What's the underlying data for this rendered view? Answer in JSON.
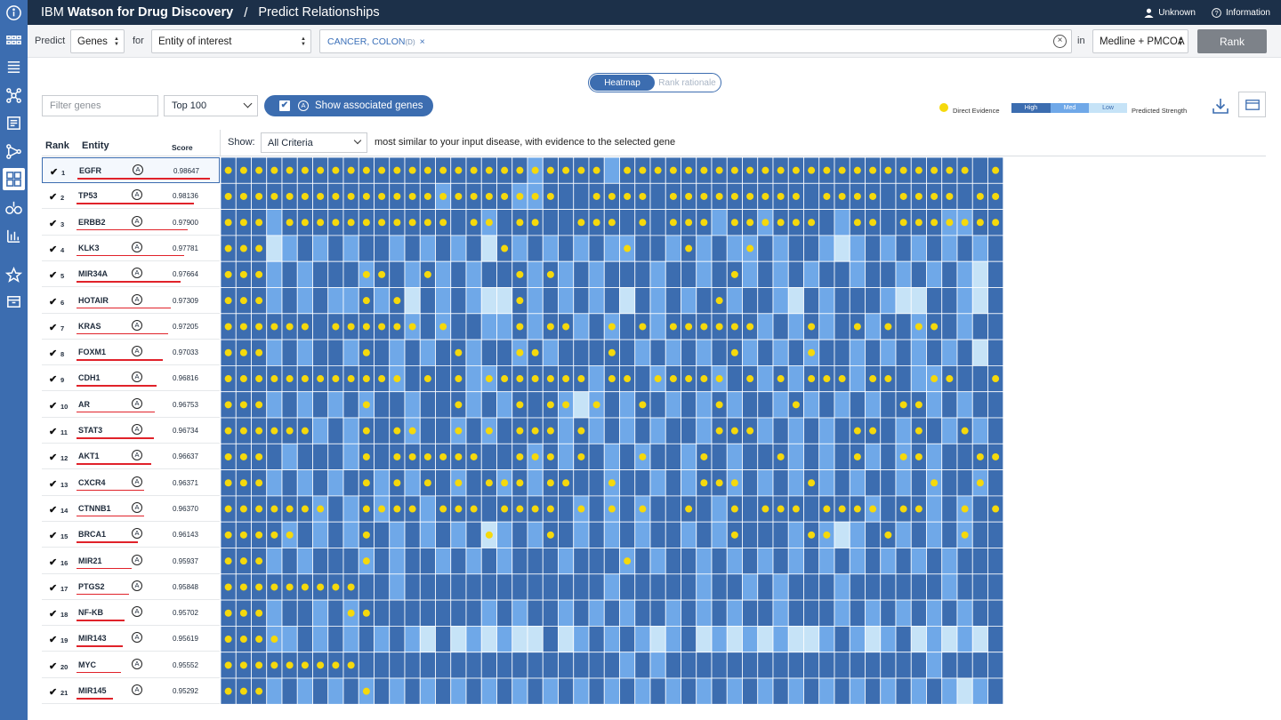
{
  "topbar": {
    "brand_prefix": "IBM",
    "brand_main": "Watson for Drug Discovery",
    "separator": "/",
    "page": "Predict Relationships",
    "user": "Unknown",
    "info": "Information"
  },
  "predict": {
    "label": "Predict",
    "entity_type": "Genes",
    "for_label": "for",
    "for_value": "Entity of interest",
    "disease_chip": "CANCER, COLON",
    "disease_tag": "(D)",
    "chip_remove": "×",
    "in_label": "in",
    "source": "Medline + PMCOA",
    "rank_button": "Rank",
    "clear_glyph": "×"
  },
  "view_toggle": {
    "heatmap": "Heatmap",
    "rationale": "Rank rationale"
  },
  "controls": {
    "filter_placeholder": "Filter genes",
    "top_value": "Top 100",
    "assoc_label": "Show associated genes",
    "assoc_checked": true,
    "a_badge": "A"
  },
  "legend": {
    "direct": "Direct Evidence",
    "high": "High",
    "med": "Med",
    "low": "Low",
    "predicted": "Predicted Strength",
    "dot_color": "#f5d90c",
    "high_color": "#3c6db0",
    "med_color": "#6fa8e8",
    "low_color": "#c6e3f7"
  },
  "table": {
    "rank_header": "Rank",
    "entity_header": "Entity",
    "score_header": "Score",
    "show_label": "Show:",
    "criteria": "All Criteria",
    "criteria_desc": "most similar to your input disease, with evidence to the selected gene",
    "check_glyph": "✔"
  },
  "rows": [
    {
      "rank": "1",
      "entity": "EGFR",
      "score": "0.98647",
      "selected": true
    },
    {
      "rank": "2",
      "entity": "TP53",
      "score": "0.98136"
    },
    {
      "rank": "3",
      "entity": "ERBB2",
      "score": "0.97900"
    },
    {
      "rank": "4",
      "entity": "KLK3",
      "score": "0.97781"
    },
    {
      "rank": "5",
      "entity": "MIR34A",
      "score": "0.97664"
    },
    {
      "rank": "6",
      "entity": "HOTAIR",
      "score": "0.97309"
    },
    {
      "rank": "7",
      "entity": "KRAS",
      "score": "0.97205"
    },
    {
      "rank": "8",
      "entity": "FOXM1",
      "score": "0.97033"
    },
    {
      "rank": "9",
      "entity": "CDH1",
      "score": "0.96816"
    },
    {
      "rank": "10",
      "entity": "AR",
      "score": "0.96753"
    },
    {
      "rank": "11",
      "entity": "STAT3",
      "score": "0.96734"
    },
    {
      "rank": "12",
      "entity": "AKT1",
      "score": "0.96637"
    },
    {
      "rank": "13",
      "entity": "CXCR4",
      "score": "0.96371"
    },
    {
      "rank": "14",
      "entity": "CTNNB1",
      "score": "0.96370"
    },
    {
      "rank": "15",
      "entity": "BRCA1",
      "score": "0.96143"
    },
    {
      "rank": "16",
      "entity": "MIR21",
      "score": "0.95937"
    },
    {
      "rank": "17",
      "entity": "PTGS2",
      "score": "0.95848"
    },
    {
      "rank": "18",
      "entity": "NF-KB",
      "score": "0.95702"
    },
    {
      "rank": "19",
      "entity": "MIR143",
      "score": "0.95619"
    },
    {
      "rank": "20",
      "entity": "MYC",
      "score": "0.95552"
    },
    {
      "rank": "21",
      "entity": "MIR145",
      "score": "0.95292"
    }
  ],
  "heatmap": {
    "strength_colors": {
      "H": "#3c6db0",
      "M": "#6fa8e8",
      "L": "#c6e3f7"
    },
    "strength": [
      "HHHHHHHHHHHHHHHHHHHHMHHHHMHHHHHHHHHHHHHHHHHHHHHHHHH",
      "HHHHHHHHHHHHHHMHHHHMMHHHHHHHHHHHHHHHHHHHHHHHHHHHHHH",
      "HHHMHHHHHHHHHHHHHMHHHHHHHHHHHHHHMHHMHHHHMHHHHHHMMHH",
      "HHHLMHMHMHHMHMHMHLHMHMHMHMMHHMHMHMMHMHHMLMHMHMHMHMH",
      "HHHMHMHHHMHHMHMHMHHHMHMHMHHHMHHMHHMHMHMHHMHHMHMHMLH",
      "HHHMHMHMMHMHLHMHMLLHMHMHMHLHMHMHHMHHMLHMHHHMLLHHMLH",
      "HHHHHHHHHHHHMHMHHMMHMHHMHMHHMHHHHHHMHMHMHHMHHMHHMHH",
      "HHHMHMHHMHHMHMHHMHHMHMHHHHHMHMHMHHMHMHMHHMHMHMHMHLH",
      "HHHHHHHHHHHMHHHHMMHHHHHHMHHHMHHHMHHMHMHHHMHHHMMHHHH",
      "HHHMHMHMHMHHMHHHMHMHHHMLMHMHHMHMHMHHMHMHMHMHHHMHMHH",
      "HHHHHHMHMHHHMHHMHMHHHHMHMHMHMHHMHHHMHMHMHHHHMHHMHMH",
      "HHHHMHHHMHHHHHHHHHHHMHMHHMHMHHMHHMHHHMHMHHMHMHMHHHH",
      "HHHMHMHMHHMHMHHMHHMHMHHHHMHHMHMHHMHMHMHMHMHHMHMHHMH",
      "HHHHHHMHMHMHHMHHHHHHHHHMHMHMHHHHMHHHHHHHHHMHHHMHMHH",
      "HHHHMHMHMHHMHMHMHLMHMHHMHMHMHHMHMHHHHMHMLMHHMHMHMHH",
      "HHHMHMHHHMHMHHMHMHMHHHMHHHMHMHHMHMHMHMHMHMHMHMHMHHH",
      "HHHHHHHHHHHMHHHHHHHHHHHHHMHHHHHMHHMHMHHHMHHHHHHMHHH",
      "HHHMHHMHMHHHHHHHHMHMHHMHMHMHHMHMHMHHMHHHMHMHMHMHMHH",
      "HHHMMHMHMHMHMLHLMLMLLHLMHMHMLMHLMLMLMLLMHMLMHLMLMLH",
      "HHHHHHHHHHHHHHHHHHHHHHHHHHMHMHHHHHHHHHHHHHHHHHMHHHH",
      "HHHMHMHMHMHMHMHMHMHMHMHMHMHMHMHMHMHMHMHMHMHMHMHMLMH"
    ],
    "dots": [
      "111111111111111111111111101111111111111111111111101111",
      "111111111111111111111100111101111111110111101111011111",
      "111011111111111011011001110101110111111001101111111111",
      "111000000000000000100000001000100010000000000000000000",
      "111000000110010000010100000000000100000000000000000000",
      "111000000101000000010000000000001000000000000000000000",
      "111111011111101000010110010101111110001001010110000011",
      "111000000100000100011000010000000100001000000000000010",
      "111111111111010101111111011011111010101110110011001101",
      "111000000100000100010110100100001000010000001100000000",
      "111111000101100101011101000000001110000001100100100000",
      "111000000101111110011101000100010000100001001100011011",
      "111000000101010101110110010000011100001000000010010000",
      "111111100111101110111101010100100101110111101100101010",
      "111110000100000001000100000000000100001100010000100000",
      "111000000100000000000000001000000000000000000000000000",
      "111111111000000000000000000000000000000000000000000000",
      "111000001100000000000000000000000000000000000000000000",
      "111100000000000000000000000000000000000000000000000000",
      "111111111000000000000000000000000000000000000000000000",
      "111000000100000000000000000000000000000000000000000000"
    ]
  }
}
